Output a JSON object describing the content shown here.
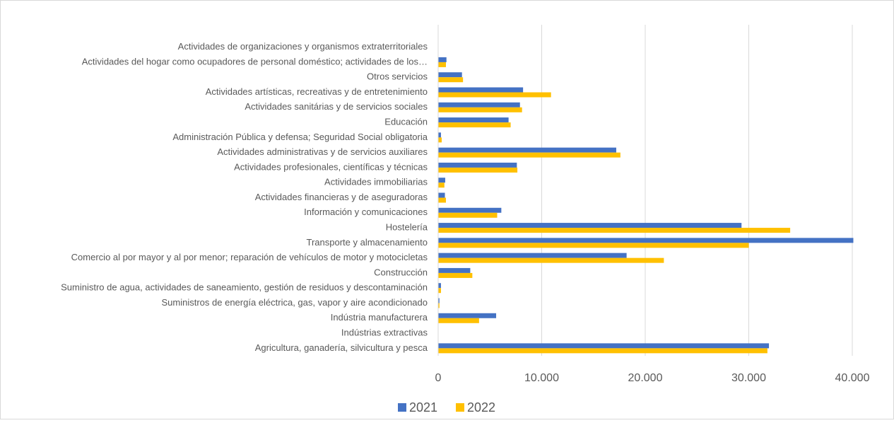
{
  "chart_data": {
    "type": "bar",
    "orientation": "horizontal",
    "categories": [
      "Actividades de organizaciones y organismos extraterritoriales",
      "Actividades del hogar como ocupadores de personal doméstico; actividades de los…",
      "Otros servicios",
      "Actividades artísticas, recreativas y de entretenimiento",
      "Actividades sanitárias y de servicios sociales",
      "Educación",
      "Administración Pública y defensa; Seguridad Social obligatoria",
      "Actividades administrativas y de servicios auxiliares",
      "Actividades profesionales, científicas y técnicas",
      "Actividades immobiliarias",
      "Actividades financieras y de aseguradoras",
      "Información y comunicaciones",
      "Hostelería",
      "Transporte y almacenamiento",
      "Comercio al por mayor y al por menor; reparación de vehículos de motor y motocicletas",
      "Construcción",
      "Suministro de agua, actividades de saneamiento, gestión de residuos y descontaminación",
      "Suministros de energía eléctrica, gas, vapor y aire acondicionado",
      "Indústria manufacturera",
      "Indústrias extractivas",
      "Agricultura, ganadería, silvicultura y pesca"
    ],
    "series": [
      {
        "name": "2021",
        "color": "#4472c4",
        "values": [
          10,
          800,
          2300,
          8200,
          7900,
          6800,
          270,
          17200,
          7600,
          680,
          650,
          6100,
          29300,
          40100,
          18200,
          3100,
          270,
          120,
          5600,
          20,
          31950
        ]
      },
      {
        "name": "2022",
        "color": "#ffc000",
        "values": [
          10,
          750,
          2400,
          10900,
          8100,
          7000,
          340,
          17600,
          7650,
          600,
          750,
          5700,
          34000,
          30000,
          21800,
          3300,
          270,
          120,
          3950,
          20,
          31800
        ]
      }
    ],
    "xlim": [
      0,
      40000
    ],
    "xticks": [
      0,
      {
        "value": 10000,
        "label": "10.000"
      },
      {
        "value": 20000,
        "label": "20.000"
      },
      {
        "value": 30000,
        "label": "30.000"
      },
      {
        "value": 40000,
        "label": "40.000"
      }
    ],
    "grid": true,
    "legend": "bottom"
  }
}
